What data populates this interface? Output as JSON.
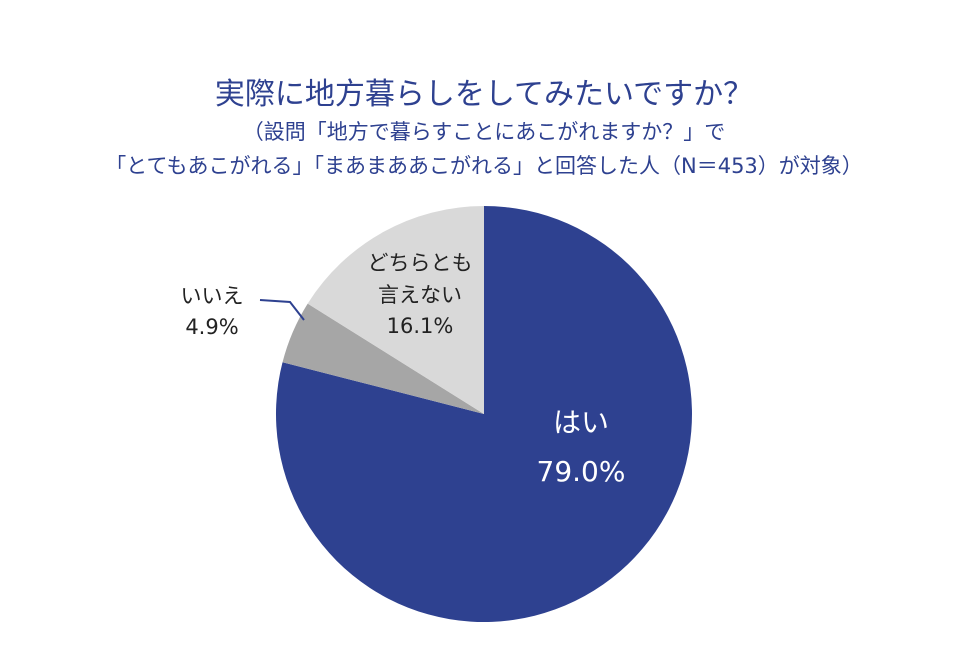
{
  "chart_data": {
    "type": "pie",
    "title": "実際に地方暮らしをしてみたいですか？",
    "subtitle_lines": [
      "（設問「地方で暮らすことにあこがれますか？」で",
      "「とてもあこがれる」「まあまああこがれる」と回答した人（N＝453）が対象）"
    ],
    "slices": [
      {
        "label_lines": [
          "はい"
        ],
        "value_label": "79.0%",
        "value": 79.0,
        "color": "#2e4190"
      },
      {
        "label_lines": [
          "いいえ"
        ],
        "value_label": "4.9%",
        "value": 4.9,
        "color": "#a6a6a6"
      },
      {
        "label_lines": [
          "どちらとも",
          "言えない"
        ],
        "value_label": "16.1%",
        "value": 16.1,
        "color": "#d9d9d9"
      }
    ],
    "legend": "none"
  }
}
